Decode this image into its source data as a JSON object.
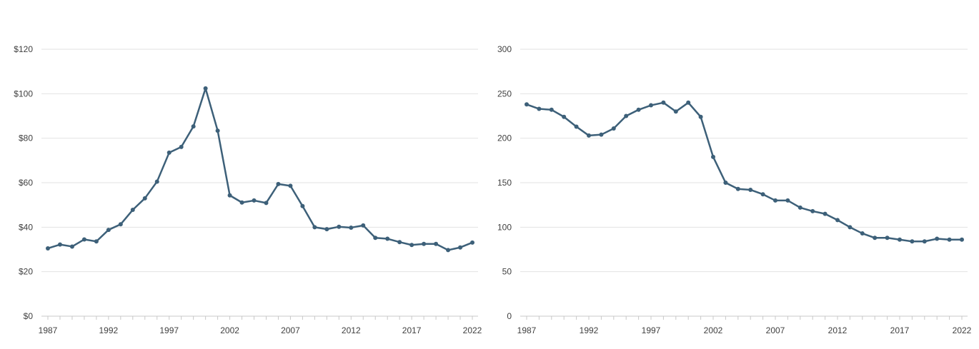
{
  "colors": {
    "series": "#3d6079",
    "grid": "#e2e2e2",
    "text": "#404040"
  },
  "chart_data": [
    {
      "type": "line",
      "title": "",
      "xlabel": "",
      "ylabel": "",
      "xlim": [
        1987,
        2022
      ],
      "ylim": [
        0,
        120
      ],
      "y_ticks": [
        0,
        20,
        40,
        60,
        80,
        100,
        120
      ],
      "y_tick_labels": [
        "$0",
        "$20",
        "$40",
        "$60",
        "$80",
        "$100",
        "$120"
      ],
      "x_ticks": [
        1987,
        1992,
        1997,
        2002,
        2007,
        2012,
        2017,
        2022
      ],
      "x_tick_labels": [
        "1987",
        "1992",
        "1997",
        "2002",
        "2007",
        "2012",
        "2017",
        "2022"
      ],
      "grid": true,
      "legend": "none",
      "x": [
        1987,
        1988,
        1989,
        1990,
        1991,
        1992,
        1993,
        1994,
        1995,
        1996,
        1997,
        1998,
        1999,
        2000,
        2001,
        2002,
        2003,
        2004,
        2005,
        2006,
        2007,
        2008,
        2009,
        2010,
        2011,
        2012,
        2013,
        2014,
        2015,
        2016,
        2017,
        2018,
        2019,
        2020,
        2021,
        2022
      ],
      "series": [
        {
          "values": [
            30.5,
            32.2,
            31.3,
            34.5,
            33.6,
            38.8,
            41.3,
            47.8,
            53.0,
            60.5,
            73.5,
            76.1,
            85.3,
            102.4,
            83.4,
            54.3,
            51.1,
            52.0,
            50.9,
            59.4,
            58.6,
            49.5,
            40.0,
            39.1,
            40.2,
            39.8,
            40.8,
            35.2,
            34.8,
            33.3,
            32.0,
            32.5,
            32.5,
            29.7,
            30.9,
            33.1
          ]
        }
      ]
    },
    {
      "type": "line",
      "title": "",
      "xlabel": "",
      "ylabel": "",
      "xlim": [
        1987,
        2022
      ],
      "ylim": [
        0,
        300
      ],
      "y_ticks": [
        0,
        50,
        100,
        150,
        200,
        250,
        300
      ],
      "y_tick_labels": [
        "0",
        "50",
        "100",
        "150",
        "200",
        "250",
        "300"
      ],
      "x_ticks": [
        1987,
        1992,
        1997,
        2002,
        2007,
        2012,
        2017,
        2022
      ],
      "x_tick_labels": [
        "1987",
        "1992",
        "1997",
        "2002",
        "2007",
        "2012",
        "2017",
        "2022"
      ],
      "grid": true,
      "legend": "none",
      "x": [
        1987,
        1988,
        1989,
        1990,
        1991,
        1992,
        1993,
        1994,
        1995,
        1996,
        1997,
        1998,
        1999,
        2000,
        2001,
        2002,
        2003,
        2004,
        2005,
        2006,
        2007,
        2008,
        2009,
        2010,
        2011,
        2012,
        2013,
        2014,
        2015,
        2016,
        2017,
        2018,
        2019,
        2020,
        2021,
        2022
      ],
      "series": [
        {
          "values": [
            238,
            233,
            232,
            224,
            213,
            203,
            204,
            211,
            225,
            232,
            237,
            240,
            230,
            240,
            224,
            179,
            150,
            143,
            142,
            137,
            130,
            130,
            122,
            118,
            115,
            108,
            100,
            93,
            88,
            88,
            86,
            84,
            84,
            87,
            86,
            86
          ]
        }
      ]
    }
  ]
}
